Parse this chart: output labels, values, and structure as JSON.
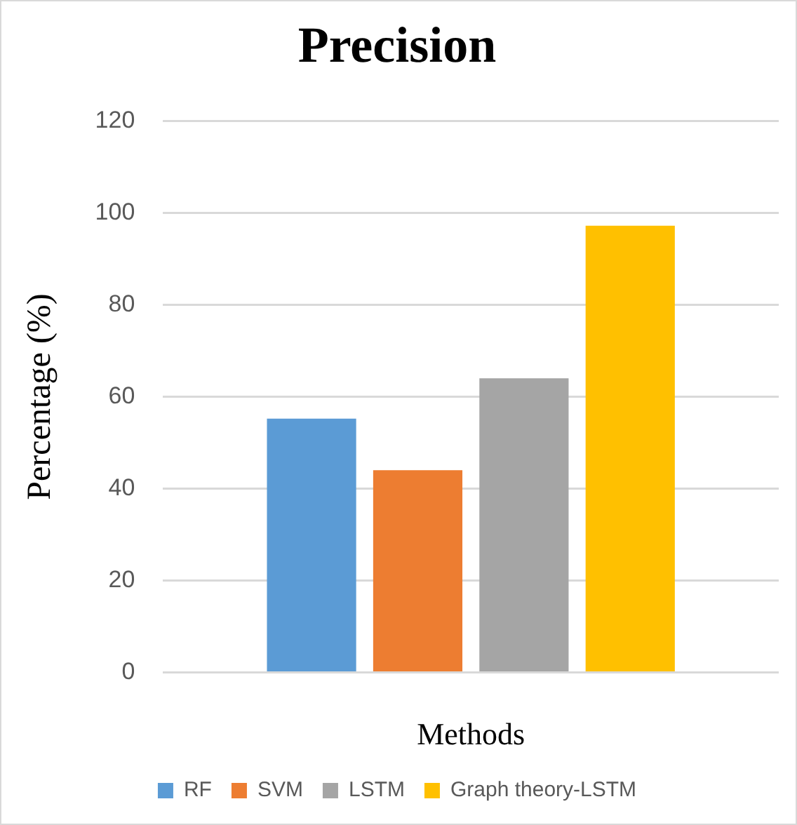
{
  "chart_data": {
    "type": "bar",
    "title": "Precision",
    "xlabel": "Methods",
    "ylabel": "Percentage (%)",
    "categories": [
      null
    ],
    "series": [
      {
        "name": "RF",
        "color": "#5b9bd5",
        "values": [
          55.2
        ]
      },
      {
        "name": "SVM",
        "color": "#ed7d31",
        "values": [
          44
        ]
      },
      {
        "name": "LSTM",
        "color": "#a5a5a5",
        "values": [
          64
        ]
      },
      {
        "name": "Graph theory-LSTM",
        "color": "#ffc000",
        "values": [
          97.2
        ]
      }
    ],
    "ylim": [
      0,
      120
    ],
    "yticks": [
      0,
      20,
      40,
      60,
      80,
      100,
      120
    ],
    "grid": "y",
    "legend": "bottom"
  }
}
